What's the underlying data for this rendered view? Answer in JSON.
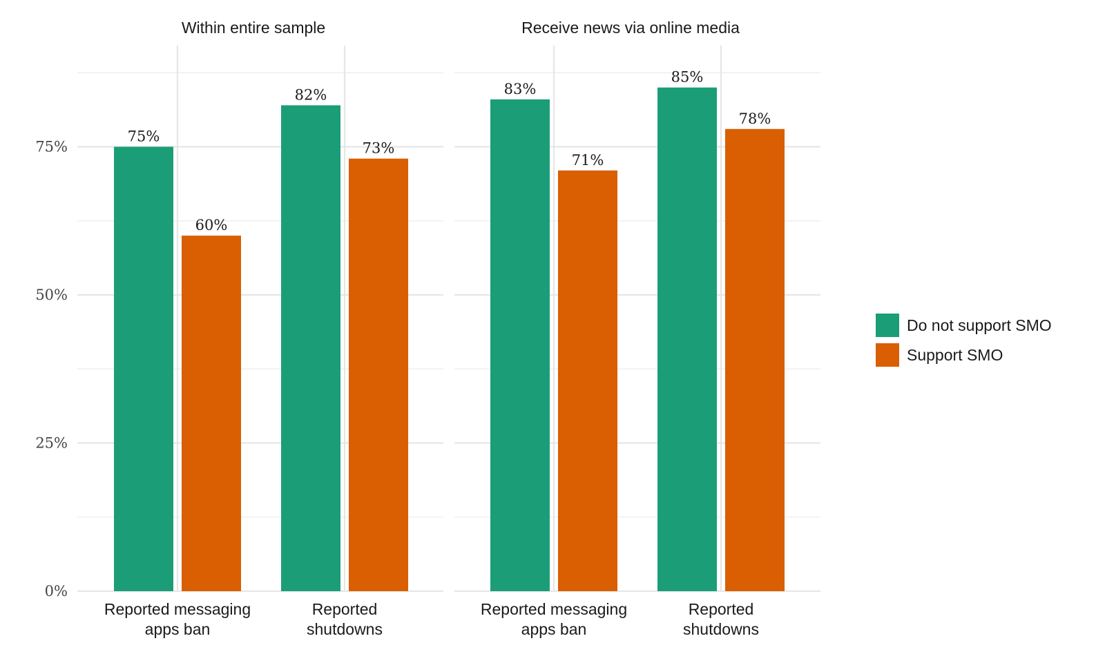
{
  "chart_data": {
    "type": "bar",
    "facets": [
      {
        "title": "Within entire sample",
        "categories": [
          "Reported messaging apps ban",
          "Reported shutdowns"
        ],
        "category_lines": [
          [
            "Reported messaging",
            "apps ban"
          ],
          [
            "Reported",
            "shutdowns"
          ]
        ],
        "series": [
          {
            "name": "Do not support SMO",
            "values": [
              75,
              82
            ],
            "labels": [
              "75%",
              "82%"
            ]
          },
          {
            "name": "Support SMO",
            "values": [
              60,
              73
            ],
            "labels": [
              "60%",
              "73%"
            ]
          }
        ]
      },
      {
        "title": "Receive news via online media",
        "categories": [
          "Reported messaging apps ban",
          "Reported shutdowns"
        ],
        "category_lines": [
          [
            "Reported messaging",
            "apps ban"
          ],
          [
            "Reported",
            "shutdowns"
          ]
        ],
        "series": [
          {
            "name": "Do not support SMO",
            "values": [
              83,
              85
            ],
            "labels": [
              "83%",
              "85%"
            ]
          },
          {
            "name": "Support SMO",
            "values": [
              71,
              78
            ],
            "labels": [
              "71%",
              "78%"
            ]
          }
        ]
      }
    ],
    "ylim": [
      0,
      87.5
    ],
    "yticks": [
      0,
      25,
      50,
      75
    ],
    "ytick_labels": [
      "0%",
      "25%",
      "50%",
      "75%"
    ],
    "grid": true,
    "legend": {
      "placement": "right",
      "entries": [
        {
          "label": "Do not support SMO",
          "color": "#1b9e77"
        },
        {
          "label": "Support SMO",
          "color": "#d95f02"
        }
      ]
    },
    "colors": [
      "#1b9e77",
      "#d95f02"
    ]
  }
}
